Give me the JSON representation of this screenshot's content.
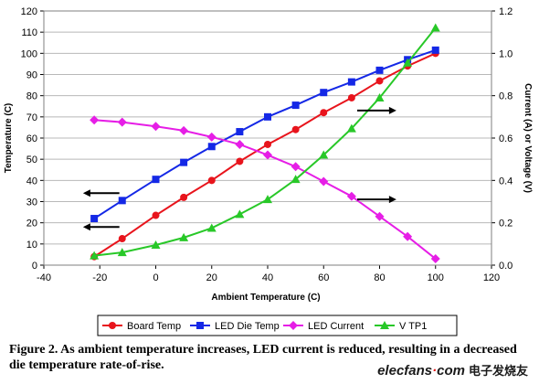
{
  "chart_data": {
    "type": "line",
    "x_axis": {
      "label": "Ambient Temperature (C)",
      "min": -40,
      "max": 120,
      "ticks": [
        -40,
        -20,
        0,
        20,
        40,
        60,
        80,
        100,
        120
      ]
    },
    "y_left": {
      "label": "Temperature (C)",
      "min": 0,
      "max": 120,
      "ticks": [
        0,
        10,
        20,
        30,
        40,
        50,
        60,
        70,
        80,
        90,
        100,
        110,
        120
      ]
    },
    "y_right": {
      "label": "Current (A) or Voltage (V)",
      "min": 0,
      "max": 1.2,
      "ticks": [
        "0.0",
        "0.2",
        "0.4",
        "0.6",
        "0.8",
        "1.0",
        "1.2"
      ]
    },
    "grid": "horizontal",
    "legend_position": "bottom",
    "series": [
      {
        "name": "Board Temp",
        "axis": "left",
        "color": "#e8141c",
        "marker": "circle",
        "x": [
          -22,
          -12,
          0,
          10,
          20,
          30,
          40,
          50,
          60,
          70,
          80,
          90,
          100
        ],
        "y": [
          4,
          12.5,
          23.5,
          32,
          40,
          49,
          57,
          64,
          72,
          79,
          87,
          94,
          100
        ]
      },
      {
        "name": "LED Die Temp",
        "axis": "left",
        "color": "#1428e6",
        "marker": "square",
        "x": [
          -22,
          -12,
          0,
          10,
          20,
          30,
          40,
          50,
          60,
          70,
          80,
          90,
          100
        ],
        "y": [
          22,
          30.5,
          40.5,
          48.5,
          56,
          63,
          70,
          75.5,
          81.5,
          86.5,
          92,
          97,
          101.5
        ]
      },
      {
        "name": "LED Current",
        "axis": "right",
        "color": "#e61ee6",
        "marker": "diamond",
        "x": [
          -22,
          -12,
          0,
          10,
          20,
          30,
          40,
          50,
          60,
          70,
          80,
          90,
          100
        ],
        "y": [
          0.685,
          0.675,
          0.655,
          0.635,
          0.605,
          0.57,
          0.52,
          0.465,
          0.395,
          0.325,
          0.23,
          0.135,
          0.03
        ]
      },
      {
        "name": "V TP1",
        "axis": "right",
        "color": "#28c828",
        "marker": "triangle",
        "x": [
          -22,
          -12,
          0,
          10,
          20,
          30,
          40,
          50,
          60,
          70,
          80,
          90,
          100
        ],
        "y": [
          0.045,
          0.06,
          0.095,
          0.13,
          0.175,
          0.24,
          0.31,
          0.405,
          0.52,
          0.645,
          0.79,
          0.955,
          1.12
        ]
      }
    ],
    "arrows": [
      {
        "direction": "left",
        "x1": -13,
        "x2": -26,
        "y_left": 34,
        "y_right": 0.34
      },
      {
        "direction": "left",
        "x1": -13,
        "x2": -26,
        "y_left": 18,
        "y_right": 0.18
      },
      {
        "direction": "right",
        "x1": 72,
        "x2": 86,
        "y_left": 73,
        "y_right": 0.73
      },
      {
        "direction": "right",
        "x1": 72,
        "x2": 86,
        "y_left": 31,
        "y_right": 0.31
      }
    ]
  },
  "caption": "Figure 2. As ambient temperature increases, LED current is reduced, resulting in a decreased die temperature rate-of-rise.",
  "watermark": {
    "brand_main": "elecfans",
    "brand_dot": "·",
    "brand_suffix": "com",
    "chinese": "电子发烧友"
  }
}
